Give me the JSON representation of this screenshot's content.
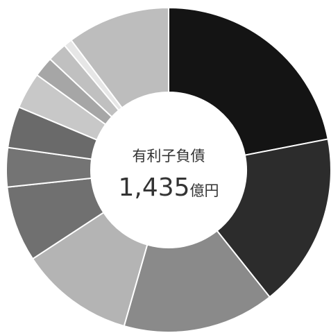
{
  "chart_data": {
    "type": "donut",
    "center_label": "有利子負債",
    "center_total": "1,435",
    "center_unit": "億円",
    "values": [
      315,
      249,
      217,
      163,
      108,
      56,
      59,
      52,
      29,
      28,
      12,
      147
    ],
    "colors": [
      "#141414",
      "#2c2c2c",
      "#8a8a8a",
      "#b4b4b4",
      "#707070",
      "#747474",
      "#6a6a6a",
      "#c8c8c8",
      "#a6a6a6",
      "#c0c0c0",
      "#e6e6e6",
      "#bdbdbd"
    ]
  }
}
